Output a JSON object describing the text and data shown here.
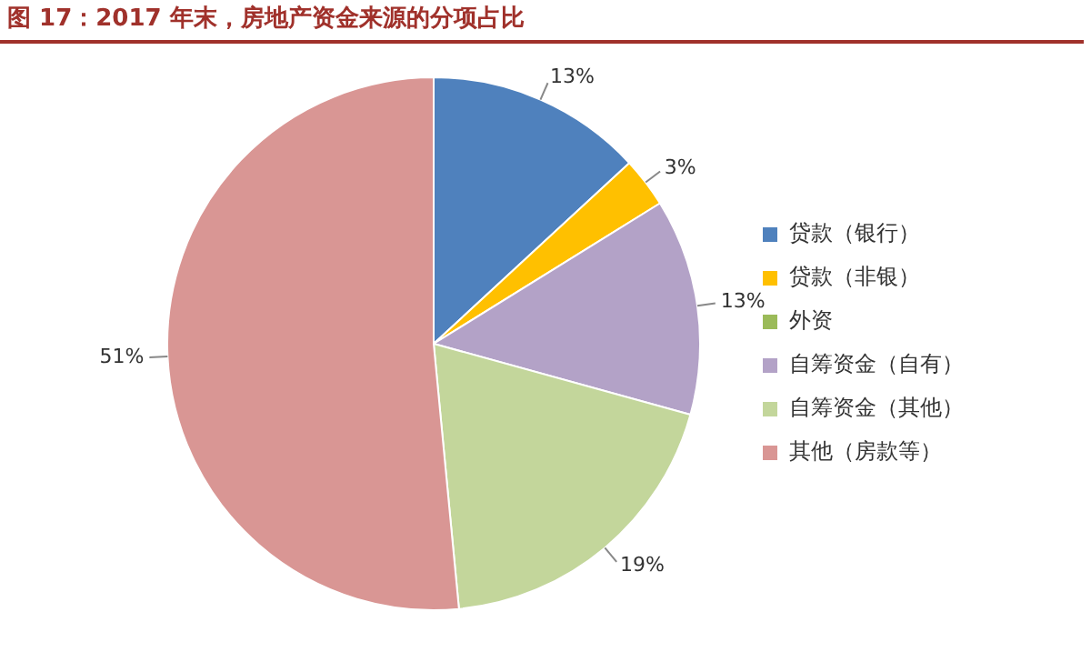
{
  "chart_data": {
    "type": "pie",
    "title": "图 17：2017 年末，房地产资金来源的分项占比",
    "categories": [
      "贷款（银行）",
      "贷款（非银）",
      "外资",
      "自筹资金（自有）",
      "自筹资金（其他）",
      "其他（房款等）"
    ],
    "values": [
      13,
      3,
      0,
      13,
      19,
      51
    ],
    "value_labels": [
      "13%",
      "3%",
      null,
      "13%",
      "19%",
      "51%"
    ],
    "colors": [
      "#4f81bd",
      "#ffc000",
      "#9bbb59",
      "#b3a2c7",
      "#c3d69b",
      "#d99694"
    ],
    "legend": "right"
  }
}
